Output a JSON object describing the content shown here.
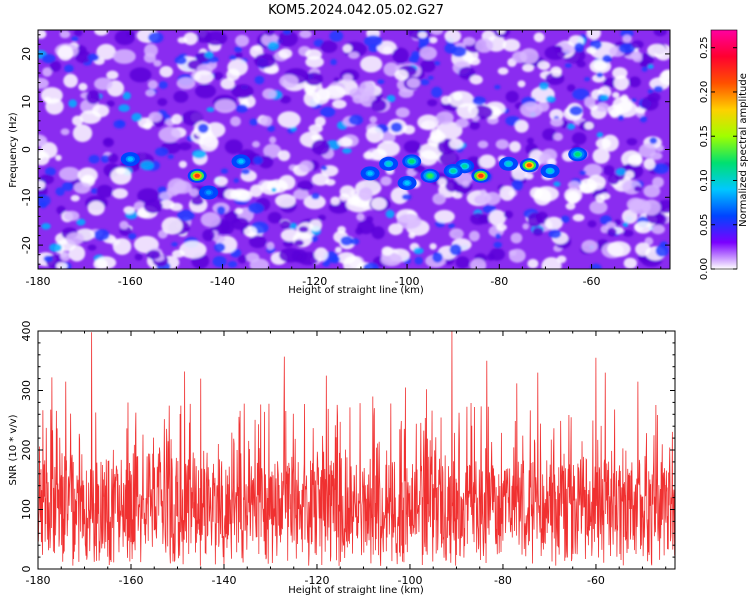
{
  "title": "KOM5.2024.042.05.02.G27",
  "chart_data": [
    {
      "type": "heatmap",
      "xlabel": "Height of straight line (km)",
      "ylabel": "Frequency (Hz)",
      "xlim": [
        -180,
        -43
      ],
      "ylim": [
        -25,
        25
      ],
      "xticks": [
        -180,
        -160,
        -140,
        -120,
        -100,
        -80,
        -60
      ],
      "yticks": [
        -20,
        -10,
        0,
        10,
        20
      ],
      "colorbar": {
        "label": "Normalized spectral amplitude",
        "range": [
          0.0,
          0.27
        ],
        "ticks": [
          "0.00",
          "0.05",
          "0.10",
          "0.15",
          "0.20",
          "0.25"
        ],
        "colors": [
          "#ffffff",
          "#7a00ff",
          "#0044ff",
          "#00c8ff",
          "#00e070",
          "#a0ff00",
          "#ffd000",
          "#ff5000",
          "#ff0030",
          "#ff00a0"
        ]
      },
      "hotspots": [
        {
          "x": -145.5,
          "y": -5.5,
          "v": 0.22
        },
        {
          "x": -84,
          "y": -5.5,
          "v": 0.22
        },
        {
          "x": -73.5,
          "y": -3.3,
          "v": 0.21
        },
        {
          "x": -95,
          "y": -5.5,
          "v": 0.13
        },
        {
          "x": -99,
          "y": -2.5,
          "v": 0.12
        },
        {
          "x": -63,
          "y": -1,
          "v": 0.12
        },
        {
          "x": -87.5,
          "y": -3.5,
          "v": 0.11
        },
        {
          "x": -90,
          "y": -4.5,
          "v": 0.11
        },
        {
          "x": -104,
          "y": -3.0,
          "v": 0.1
        },
        {
          "x": -78,
          "y": -3.0,
          "v": 0.1
        },
        {
          "x": -69,
          "y": -4.5,
          "v": 0.1
        },
        {
          "x": -160,
          "y": -2,
          "v": 0.09
        },
        {
          "x": -136,
          "y": -2.5,
          "v": 0.09
        },
        {
          "x": -108,
          "y": -5,
          "v": 0.09
        },
        {
          "x": -143,
          "y": -9,
          "v": 0.08
        },
        {
          "x": -100,
          "y": -7,
          "v": 0.09
        }
      ]
    },
    {
      "type": "line",
      "xlabel": "Height of straight line (km)",
      "ylabel": "SNR (10 * v/v)",
      "xlim": [
        -180,
        -43
      ],
      "ylim": [
        0,
        400
      ],
      "xticks": [
        -180,
        -160,
        -140,
        -120,
        -100,
        -80,
        -60
      ],
      "yticks": [
        0,
        100,
        200,
        300,
        400
      ],
      "color": "#f03030",
      "baseline_mean": 110,
      "peaks": [
        {
          "x": -168.5,
          "y": 398
        },
        {
          "x": -91,
          "y": 400
        },
        {
          "x": -177,
          "y": 322
        },
        {
          "x": -174,
          "y": 315
        },
        {
          "x": -148.5,
          "y": 332
        },
        {
          "x": -145,
          "y": 320
        },
        {
          "x": -127,
          "y": 357
        },
        {
          "x": -118,
          "y": 325
        },
        {
          "x": -83.5,
          "y": 350
        },
        {
          "x": -72.5,
          "y": 330
        },
        {
          "x": -60,
          "y": 355
        },
        {
          "x": -58,
          "y": 330
        },
        {
          "x": -51,
          "y": 315
        },
        {
          "x": -101,
          "y": 305
        },
        {
          "x": -96.5,
          "y": 302
        },
        {
          "x": -108,
          "y": 290
        },
        {
          "x": -77,
          "y": 312
        }
      ]
    }
  ]
}
